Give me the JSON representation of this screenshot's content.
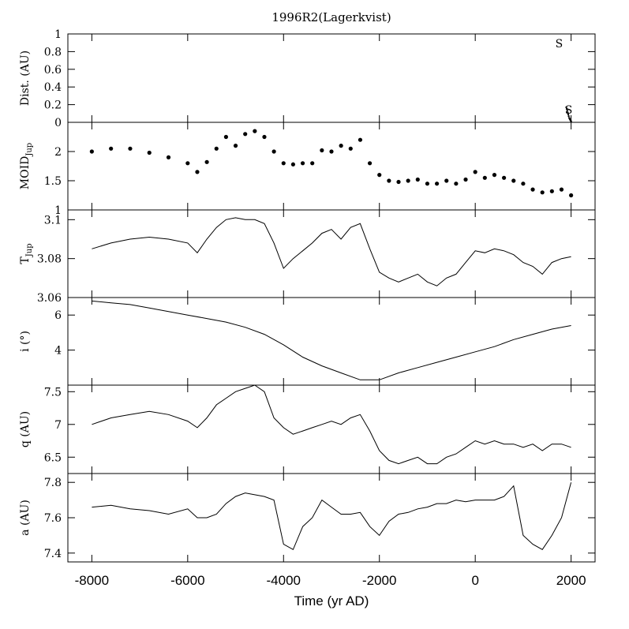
{
  "chart_data": {
    "type": "line",
    "title": "1996R2(Lagerkvist)",
    "xlabel": "Time (yr AD)",
    "xlim": [
      -8500,
      2500
    ],
    "x_ticks": [
      -8000,
      -6000,
      -4000,
      -2000,
      0,
      2000
    ],
    "x_tick_labels": [
      "-8000",
      "-6000",
      "-4000",
      "-2000",
      "0",
      "2000"
    ],
    "panels": [
      {
        "key": "dist",
        "ylabel": "Dist. (AU)",
        "ylim": [
          0,
          1
        ],
        "yticks": [
          0,
          0.2,
          0.4,
          0.6,
          0.8,
          1
        ],
        "ytick_labels": [
          "0",
          "0.2",
          "0.4",
          "0.6",
          "0.8",
          "1"
        ],
        "style": "markers",
        "annotations": [
          {
            "text": "S",
            "x": 1750,
            "y": 0.85
          },
          {
            "text": "S",
            "x": 1950,
            "y": 0.1
          }
        ],
        "series": [
          {
            "x": [
              1900,
              1910,
              1920,
              1930,
              1940,
              1950,
              1960,
              1970,
              1980,
              1990,
              2000
            ],
            "y": [
              0.17,
              0.15,
              0.13,
              0.11,
              0.09,
              0.07,
              0.05,
              0.04,
              0.03,
              0.02,
              0.01
            ]
          }
        ]
      },
      {
        "key": "moid",
        "ylabel": "MOID",
        "ylabel_sub": "Jup",
        "ylim": [
          1,
          2.5
        ],
        "yticks": [
          1,
          1.5,
          2
        ],
        "ytick_labels": [
          "1",
          "1.5",
          "2"
        ],
        "style": "scatter",
        "series": [
          {
            "x": [
              -8000,
              -7600,
              -7200,
              -6800,
              -6400,
              -6000,
              -5800,
              -5600,
              -5400,
              -5200,
              -5000,
              -4800,
              -4600,
              -4400,
              -4200,
              -4000,
              -3800,
              -3600,
              -3400,
              -3200,
              -3000,
              -2800,
              -2600,
              -2400,
              -2200,
              -2000,
              -1800,
              -1600,
              -1400,
              -1200,
              -1000,
              -800,
              -600,
              -400,
              -200,
              0,
              200,
              400,
              600,
              800,
              1000,
              1200,
              1400,
              1600,
              1800,
              2000
            ],
            "y": [
              2.0,
              2.05,
              2.05,
              1.98,
              1.9,
              1.8,
              1.65,
              1.82,
              2.05,
              2.25,
              2.1,
              2.3,
              2.35,
              2.25,
              2.0,
              1.8,
              1.78,
              1.8,
              1.8,
              2.02,
              2.0,
              2.1,
              2.05,
              2.2,
              1.8,
              1.6,
              1.5,
              1.48,
              1.5,
              1.52,
              1.45,
              1.45,
              1.5,
              1.45,
              1.52,
              1.65,
              1.55,
              1.6,
              1.55,
              1.5,
              1.45,
              1.35,
              1.3,
              1.32,
              1.35,
              1.25
            ]
          }
        ]
      },
      {
        "key": "tjup",
        "ylabel": "T",
        "ylabel_sub": "Jup",
        "ylim": [
          3.06,
          3.105
        ],
        "yticks": [
          3.06,
          3.08,
          3.1
        ],
        "ytick_labels": [
          "3.06",
          "3.08",
          "3.1"
        ],
        "style": "line",
        "series": [
          {
            "x": [
              -8000,
              -7600,
              -7200,
              -6800,
              -6400,
              -6000,
              -5800,
              -5600,
              -5400,
              -5200,
              -5000,
              -4800,
              -4600,
              -4400,
              -4200,
              -4000,
              -3800,
              -3600,
              -3400,
              -3200,
              -3000,
              -2800,
              -2600,
              -2400,
              -2200,
              -2000,
              -1800,
              -1600,
              -1400,
              -1200,
              -1000,
              -800,
              -600,
              -400,
              -200,
              0,
              200,
              400,
              600,
              800,
              1000,
              1200,
              1400,
              1600,
              1800,
              2000
            ],
            "y": [
              3.085,
              3.088,
              3.09,
              3.091,
              3.09,
              3.088,
              3.083,
              3.09,
              3.096,
              3.1,
              3.101,
              3.1,
              3.1,
              3.098,
              3.088,
              3.075,
              3.08,
              3.084,
              3.088,
              3.093,
              3.095,
              3.09,
              3.096,
              3.098,
              3.085,
              3.073,
              3.07,
              3.068,
              3.07,
              3.072,
              3.068,
              3.066,
              3.07,
              3.072,
              3.078,
              3.084,
              3.083,
              3.085,
              3.084,
              3.082,
              3.078,
              3.076,
              3.072,
              3.078,
              3.08,
              3.081
            ]
          }
        ]
      },
      {
        "key": "incl",
        "ylabel": "i (°)",
        "ylim": [
          2,
          7
        ],
        "yticks": [
          4,
          6
        ],
        "ytick_labels": [
          "4",
          "6"
        ],
        "style": "line",
        "series": [
          {
            "x": [
              -8000,
              -7600,
              -7200,
              -6800,
              -6400,
              -6000,
              -5600,
              -5200,
              -4800,
              -4400,
              -4000,
              -3600,
              -3200,
              -2800,
              -2400,
              -2000,
              -1600,
              -1200,
              -800,
              -400,
              0,
              400,
              800,
              1200,
              1600,
              2000
            ],
            "y": [
              6.8,
              6.7,
              6.6,
              6.4,
              6.2,
              6.0,
              5.8,
              5.6,
              5.3,
              4.9,
              4.3,
              3.6,
              3.1,
              2.7,
              2.3,
              2.3,
              2.7,
              3.0,
              3.3,
              3.6,
              3.9,
              4.2,
              4.6,
              4.9,
              5.2,
              5.4
            ]
          }
        ]
      },
      {
        "key": "q",
        "ylabel": "q (AU)",
        "ylim": [
          6.25,
          7.6
        ],
        "yticks": [
          6.5,
          7,
          7.5
        ],
        "ytick_labels": [
          "6.5",
          "7",
          "7.5"
        ],
        "style": "line",
        "series": [
          {
            "x": [
              -8000,
              -7600,
              -7200,
              -6800,
              -6400,
              -6000,
              -5800,
              -5600,
              -5400,
              -5200,
              -5000,
              -4800,
              -4600,
              -4400,
              -4200,
              -4000,
              -3800,
              -3600,
              -3400,
              -3200,
              -3000,
              -2800,
              -2600,
              -2400,
              -2200,
              -2000,
              -1800,
              -1600,
              -1400,
              -1200,
              -1000,
              -800,
              -600,
              -400,
              -200,
              0,
              200,
              400,
              600,
              800,
              1000,
              1200,
              1400,
              1600,
              1800,
              2000
            ],
            "y": [
              7.0,
              7.1,
              7.15,
              7.2,
              7.15,
              7.05,
              6.95,
              7.1,
              7.3,
              7.4,
              7.5,
              7.55,
              7.6,
              7.5,
              7.1,
              6.95,
              6.85,
              6.9,
              6.95,
              7.0,
              7.05,
              7.0,
              7.1,
              7.15,
              6.9,
              6.6,
              6.45,
              6.4,
              6.45,
              6.5,
              6.4,
              6.4,
              6.5,
              6.55,
              6.65,
              6.75,
              6.7,
              6.75,
              6.7,
              6.7,
              6.65,
              6.7,
              6.6,
              6.7,
              6.7,
              6.65
            ]
          }
        ]
      },
      {
        "key": "a",
        "ylabel": "a (AU)",
        "ylim": [
          7.35,
          7.85
        ],
        "yticks": [
          7.4,
          7.6,
          7.8
        ],
        "ytick_labels": [
          "7.4",
          "7.6",
          "7.8"
        ],
        "style": "line",
        "series": [
          {
            "x": [
              -8000,
              -7600,
              -7200,
              -6800,
              -6400,
              -6000,
              -5800,
              -5600,
              -5400,
              -5200,
              -5000,
              -4800,
              -4600,
              -4400,
              -4200,
              -4000,
              -3800,
              -3600,
              -3400,
              -3200,
              -3000,
              -2800,
              -2600,
              -2400,
              -2200,
              -2000,
              -1800,
              -1600,
              -1400,
              -1200,
              -1000,
              -800,
              -600,
              -400,
              -200,
              0,
              200,
              400,
              600,
              800,
              1000,
              1200,
              1400,
              1600,
              1800,
              2000
            ],
            "y": [
              7.66,
              7.67,
              7.65,
              7.64,
              7.62,
              7.65,
              7.6,
              7.6,
              7.62,
              7.68,
              7.72,
              7.74,
              7.73,
              7.72,
              7.7,
              7.45,
              7.42,
              7.55,
              7.6,
              7.7,
              7.66,
              7.62,
              7.62,
              7.63,
              7.55,
              7.5,
              7.58,
              7.62,
              7.63,
              7.65,
              7.66,
              7.68,
              7.68,
              7.7,
              7.69,
              7.7,
              7.7,
              7.7,
              7.72,
              7.78,
              7.5,
              7.45,
              7.42,
              7.5,
              7.6,
              7.8
            ]
          }
        ]
      }
    ]
  }
}
